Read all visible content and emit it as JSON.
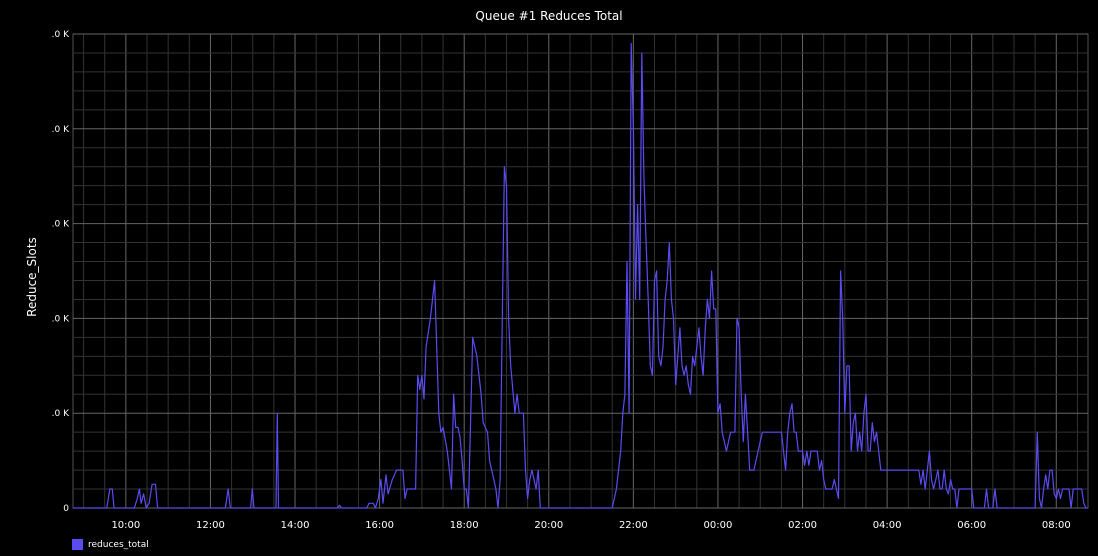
{
  "chart_data": {
    "type": "line",
    "title": "Queue #1 Reduces Total",
    "ylabel": "Reduce_Slots",
    "xlabel": "",
    "color": "#5a4cf0",
    "grid": true,
    "ylim": [
      0,
      5
    ],
    "yticks": [
      {
        "value": 0,
        "label": "0"
      },
      {
        "value": 1,
        "label": ".0 K"
      },
      {
        "value": 2,
        "label": ".0 K"
      },
      {
        "value": 3,
        "label": ".0 K"
      },
      {
        "value": 4,
        "label": ".0 K"
      },
      {
        "value": 5,
        "label": ".0 K"
      }
    ],
    "xlim": [
      8.75,
      32.75
    ],
    "xticks": [
      {
        "value": 10,
        "label": "10:00"
      },
      {
        "value": 12,
        "label": "12:00"
      },
      {
        "value": 14,
        "label": "14:00"
      },
      {
        "value": 16,
        "label": "16:00"
      },
      {
        "value": 18,
        "label": "18:00"
      },
      {
        "value": 20,
        "label": "20:00"
      },
      {
        "value": 22,
        "label": "22:00"
      },
      {
        "value": 24,
        "label": "00:00"
      },
      {
        "value": 26,
        "label": "02:00"
      },
      {
        "value": 28,
        "label": "04:00"
      },
      {
        "value": 30,
        "label": "06:00"
      },
      {
        "value": 32,
        "label": "08:00"
      }
    ],
    "legend": {
      "position": "bottom-left",
      "entries": [
        "reduces_total"
      ]
    },
    "series": [
      {
        "name": "reduces_total",
        "points": [
          [
            8.75,
            0
          ],
          [
            9.55,
            0
          ],
          [
            9.62,
            0.2
          ],
          [
            9.68,
            0.2
          ],
          [
            9.72,
            0
          ],
          [
            10.2,
            0
          ],
          [
            10.27,
            0.1
          ],
          [
            10.32,
            0.2
          ],
          [
            10.36,
            0.05
          ],
          [
            10.42,
            0.15
          ],
          [
            10.48,
            0
          ],
          [
            10.55,
            0.05
          ],
          [
            10.62,
            0.25
          ],
          [
            10.7,
            0.25
          ],
          [
            10.75,
            0
          ],
          [
            12.35,
            0
          ],
          [
            12.42,
            0.2
          ],
          [
            12.47,
            0
          ],
          [
            12.95,
            0
          ],
          [
            12.99,
            0.2
          ],
          [
            13.03,
            0
          ],
          [
            13.55,
            0
          ],
          [
            13.58,
            1.0
          ],
          [
            13.61,
            0
          ],
          [
            15.0,
            0
          ],
          [
            15.05,
            0.03
          ],
          [
            15.1,
            0
          ],
          [
            15.7,
            0
          ],
          [
            15.75,
            0.05
          ],
          [
            15.85,
            0.05
          ],
          [
            15.9,
            0
          ],
          [
            15.97,
            0.1
          ],
          [
            16.03,
            0.3
          ],
          [
            16.08,
            0.05
          ],
          [
            16.15,
            0.35
          ],
          [
            16.2,
            0.15
          ],
          [
            16.3,
            0.3
          ],
          [
            16.4,
            0.4
          ],
          [
            16.55,
            0.4
          ],
          [
            16.6,
            0.1
          ],
          [
            16.65,
            0.2
          ],
          [
            16.85,
            0.2
          ],
          [
            16.9,
            1.4
          ],
          [
            16.95,
            1.25
          ],
          [
            17.0,
            1.4
          ],
          [
            17.05,
            1.15
          ],
          [
            17.1,
            1.7
          ],
          [
            17.2,
            2.0
          ],
          [
            17.3,
            2.4
          ],
          [
            17.4,
            1.0
          ],
          [
            17.45,
            0.8
          ],
          [
            17.5,
            0.85
          ],
          [
            17.6,
            0.6
          ],
          [
            17.7,
            0.2
          ],
          [
            17.75,
            1.2
          ],
          [
            17.8,
            0.85
          ],
          [
            17.85,
            0.85
          ],
          [
            17.9,
            0.75
          ],
          [
            17.95,
            0.5
          ],
          [
            18.0,
            0.2
          ],
          [
            18.05,
            0.2
          ],
          [
            18.1,
            0
          ],
          [
            18.2,
            1.8
          ],
          [
            18.3,
            1.6
          ],
          [
            18.35,
            1.4
          ],
          [
            18.4,
            1.2
          ],
          [
            18.45,
            0.9
          ],
          [
            18.55,
            0.8
          ],
          [
            18.6,
            0.5
          ],
          [
            18.65,
            0.4
          ],
          [
            18.75,
            0.2
          ],
          [
            18.8,
            0
          ],
          [
            18.85,
            0.3
          ],
          [
            18.9,
            2.0
          ],
          [
            18.95,
            3.6
          ],
          [
            19.0,
            3.4
          ],
          [
            19.05,
            2.0
          ],
          [
            19.1,
            1.5
          ],
          [
            19.2,
            1.0
          ],
          [
            19.25,
            1.2
          ],
          [
            19.3,
            1.0
          ],
          [
            19.4,
            1.0
          ],
          [
            19.45,
            0.4
          ],
          [
            19.5,
            0.1
          ],
          [
            19.55,
            0.3
          ],
          [
            19.6,
            0.4
          ],
          [
            19.7,
            0.2
          ],
          [
            19.75,
            0.4
          ],
          [
            19.8,
            0
          ],
          [
            21.5,
            0
          ],
          [
            21.6,
            0.2
          ],
          [
            21.7,
            0.6
          ],
          [
            21.75,
            1.0
          ],
          [
            21.8,
            1.2
          ],
          [
            21.85,
            2.6
          ],
          [
            21.9,
            1.0
          ],
          [
            21.95,
            4.9
          ],
          [
            22.0,
            4.0
          ],
          [
            22.05,
            2.2
          ],
          [
            22.1,
            3.2
          ],
          [
            22.15,
            2.2
          ],
          [
            22.2,
            4.8
          ],
          [
            22.25,
            3.5
          ],
          [
            22.3,
            2.8
          ],
          [
            22.35,
            2.2
          ],
          [
            22.4,
            1.5
          ],
          [
            22.45,
            1.4
          ],
          [
            22.5,
            2.4
          ],
          [
            22.55,
            2.5
          ],
          [
            22.6,
            1.6
          ],
          [
            22.65,
            1.5
          ],
          [
            22.7,
            1.7
          ],
          [
            22.75,
            2.2
          ],
          [
            22.8,
            2.4
          ],
          [
            22.85,
            2.8
          ],
          [
            22.9,
            2.2
          ],
          [
            22.95,
            2.0
          ],
          [
            23.0,
            1.3
          ],
          [
            23.05,
            1.6
          ],
          [
            23.1,
            1.9
          ],
          [
            23.15,
            1.5
          ],
          [
            23.2,
            1.4
          ],
          [
            23.25,
            1.5
          ],
          [
            23.3,
            1.3
          ],
          [
            23.35,
            1.2
          ],
          [
            23.4,
            1.6
          ],
          [
            23.45,
            1.5
          ],
          [
            23.5,
            1.7
          ],
          [
            23.55,
            1.9
          ],
          [
            23.6,
            1.6
          ],
          [
            23.65,
            1.4
          ],
          [
            23.7,
            1.9
          ],
          [
            23.75,
            2.2
          ],
          [
            23.8,
            2.0
          ],
          [
            23.85,
            2.5
          ],
          [
            23.9,
            2.1
          ],
          [
            23.95,
            2.1
          ],
          [
            24.0,
            1.0
          ],
          [
            24.05,
            1.1
          ],
          [
            24.1,
            0.8
          ],
          [
            24.2,
            0.6
          ],
          [
            24.3,
            0.8
          ],
          [
            24.4,
            0.8
          ],
          [
            24.45,
            2.0
          ],
          [
            24.5,
            1.9
          ],
          [
            24.55,
            1.2
          ],
          [
            24.6,
            0.7
          ],
          [
            24.65,
            1.2
          ],
          [
            24.7,
            0.8
          ],
          [
            24.75,
            0.4
          ],
          [
            24.85,
            0.4
          ],
          [
            24.95,
            0.6
          ],
          [
            25.05,
            0.8
          ],
          [
            25.5,
            0.8
          ],
          [
            25.55,
            0.6
          ],
          [
            25.6,
            0.4
          ],
          [
            25.65,
            0.8
          ],
          [
            25.7,
            1.0
          ],
          [
            25.75,
            1.1
          ],
          [
            25.8,
            0.8
          ],
          [
            25.85,
            0.8
          ],
          [
            25.9,
            0.6
          ],
          [
            26.0,
            0.6
          ],
          [
            26.05,
            0.45
          ],
          [
            26.1,
            0.6
          ],
          [
            26.15,
            0.45
          ],
          [
            26.2,
            0.6
          ],
          [
            26.35,
            0.6
          ],
          [
            26.4,
            0.4
          ],
          [
            26.45,
            0.5
          ],
          [
            26.5,
            0.3
          ],
          [
            26.55,
            0.2
          ],
          [
            26.7,
            0.2
          ],
          [
            26.75,
            0.3
          ],
          [
            26.8,
            0.2
          ],
          [
            26.85,
            0.1
          ],
          [
            26.9,
            2.5
          ],
          [
            26.95,
            2.0
          ],
          [
            27.0,
            1.0
          ],
          [
            27.05,
            1.5
          ],
          [
            27.1,
            1.5
          ],
          [
            27.15,
            0.6
          ],
          [
            27.2,
            0.9
          ],
          [
            27.25,
            1.0
          ],
          [
            27.3,
            0.6
          ],
          [
            27.35,
            0.8
          ],
          [
            27.4,
            0.6
          ],
          [
            27.45,
            1.0
          ],
          [
            27.5,
            1.2
          ],
          [
            27.55,
            0.6
          ],
          [
            27.6,
            0.6
          ],
          [
            27.65,
            0.9
          ],
          [
            27.7,
            0.7
          ],
          [
            27.75,
            0.8
          ],
          [
            27.8,
            0.6
          ],
          [
            27.85,
            0.4
          ],
          [
            28.0,
            0.4
          ],
          [
            28.5,
            0.4
          ],
          [
            28.55,
            0.4
          ],
          [
            28.75,
            0.4
          ],
          [
            28.8,
            0.25
          ],
          [
            28.85,
            0.4
          ],
          [
            28.9,
            0.2
          ],
          [
            28.95,
            0.4
          ],
          [
            29.0,
            0.6
          ],
          [
            29.05,
            0.3
          ],
          [
            29.1,
            0.2
          ],
          [
            29.15,
            0.3
          ],
          [
            29.2,
            0.4
          ],
          [
            29.25,
            0.2
          ],
          [
            29.3,
            0.2
          ],
          [
            29.35,
            0.4
          ],
          [
            29.4,
            0.2
          ],
          [
            29.45,
            0.15
          ],
          [
            29.5,
            0.3
          ],
          [
            29.55,
            0.2
          ],
          [
            29.6,
            0.2
          ],
          [
            29.65,
            0
          ],
          [
            29.7,
            0.2
          ],
          [
            29.75,
            0.2
          ],
          [
            30.0,
            0.2
          ],
          [
            30.05,
            0
          ],
          [
            30.3,
            0
          ],
          [
            30.35,
            0.2
          ],
          [
            30.4,
            0
          ],
          [
            30.5,
            0
          ],
          [
            30.55,
            0.2
          ],
          [
            30.6,
            0
          ],
          [
            31.5,
            0
          ],
          [
            31.55,
            0.8
          ],
          [
            31.6,
            0.1
          ],
          [
            31.65,
            0
          ],
          [
            31.7,
            0.2
          ],
          [
            31.75,
            0.35
          ],
          [
            31.8,
            0.2
          ],
          [
            31.85,
            0.4
          ],
          [
            31.9,
            0.4
          ],
          [
            31.95,
            0.15
          ],
          [
            32.0,
            0.1
          ],
          [
            32.05,
            0.2
          ],
          [
            32.1,
            0.1
          ],
          [
            32.15,
            0.2
          ],
          [
            32.3,
            0.2
          ],
          [
            32.35,
            0
          ],
          [
            32.4,
            0.2
          ],
          [
            32.6,
            0.2
          ],
          [
            32.65,
            0.05
          ],
          [
            32.7,
            0
          ],
          [
            32.75,
            0
          ]
        ]
      }
    ]
  }
}
